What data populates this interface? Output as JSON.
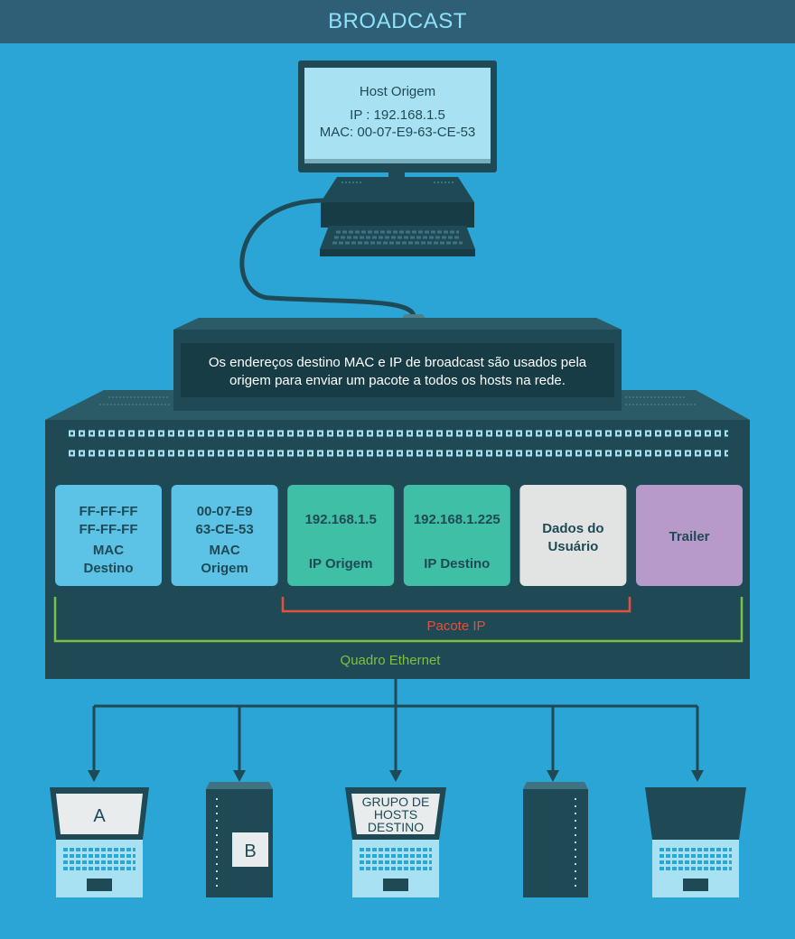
{
  "header": {
    "title": "BROADCAST"
  },
  "monitor": {
    "title": "Host Origem",
    "ip": "IP : 192.168.1.5",
    "mac": "MAC: 00-07-E9-63-CE-53"
  },
  "note": {
    "line1": "Os endereços destino MAC e IP de broadcast são usados pela",
    "line2": "origem para enviar um pacote a todos os hosts na rede."
  },
  "frame_fields": [
    {
      "lines": [
        "FF-FF-FF",
        "FF-FF-FF",
        "MAC",
        "Destino"
      ],
      "color": "#5cc3e6"
    },
    {
      "lines": [
        "00-07-E9",
        "63-CE-53",
        "MAC",
        "Origem"
      ],
      "color": "#5cc3e6"
    },
    {
      "lines": [
        "192.168.1.5",
        "IP Origem"
      ],
      "color": "#3fbfa6"
    },
    {
      "lines": [
        "192.168.1.225",
        "IP Destino"
      ],
      "color": "#3fbfa6"
    },
    {
      "lines": [
        "Dados do",
        "Usuário"
      ],
      "color": "#e2e4e4"
    },
    {
      "lines": [
        "Trailer"
      ],
      "color": "#b79ac9"
    }
  ],
  "brackets": {
    "packet_label": "Pacote IP",
    "frame_label": "Quadro Ethernet",
    "packet_color": "#e2503f",
    "frame_color": "#7dc142"
  },
  "hosts": {
    "a_label": "A",
    "b_label": "B",
    "group_line1": "GRUPO DE",
    "group_line2": "HOSTS",
    "group_line3": "DESTINO"
  },
  "colors": {
    "background": "#2ba4d6",
    "dark": "#1f4a55",
    "screen": "#a8e2f2"
  }
}
